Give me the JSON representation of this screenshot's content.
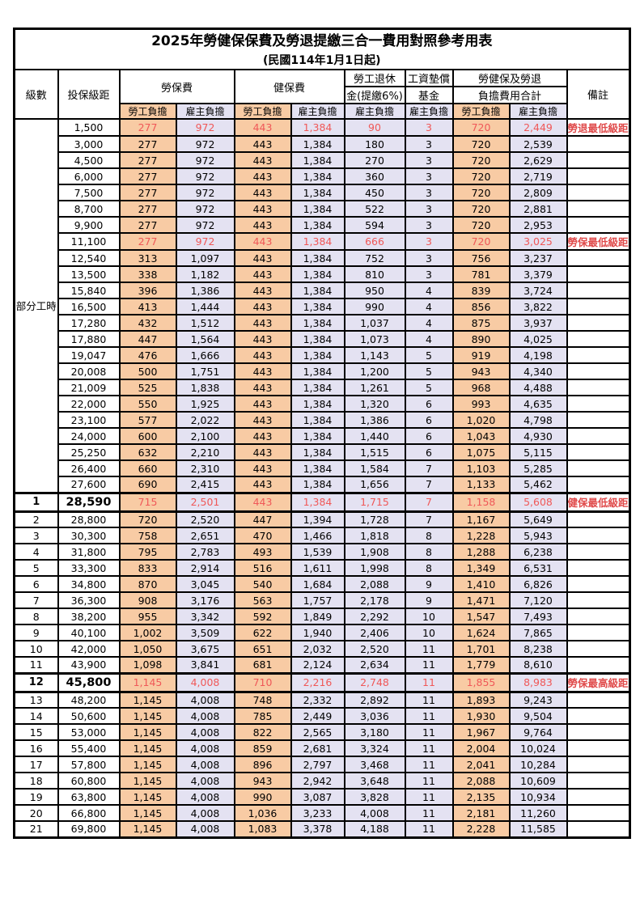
{
  "title": "2025年勞健保保費及勞退提繳三合一費用對照參考用表",
  "subtitle": "(民國114年1月1日起)",
  "colors": {
    "employee_bg": "#f8cba4",
    "employer_bg": "#e4e2f2",
    "milestone_value_text": "#f05858",
    "remark_text": "#e04b4b",
    "border": "#000000"
  },
  "table": {
    "header": {
      "level": "級數",
      "bracket": "投保級距",
      "labor_ins": "勞保費",
      "health_ins": "健保費",
      "pension1": "勞工退休",
      "pension2": "金(提繳6%)",
      "fund1": "工資墊償",
      "fund2": "基金",
      "total1": "勞健保及勞退",
      "total2": "負擔費用合計",
      "remark": "備註",
      "employee": "勞工負擔",
      "employer": "雇主負擔"
    },
    "part_time_label": "部分工時",
    "part_time_rowspan": 23,
    "rows": [
      {
        "level": "",
        "bracket": "1,500",
        "values": [
          "277",
          "972",
          "443",
          "1,384",
          "90",
          "3",
          "720",
          "2,449"
        ],
        "remark": "勞退最低級距",
        "red": true,
        "bold": false
      },
      {
        "level": "",
        "bracket": "3,000",
        "values": [
          "277",
          "972",
          "443",
          "1,384",
          "180",
          "3",
          "720",
          "2,539"
        ],
        "remark": "",
        "red": false,
        "bold": false
      },
      {
        "level": "",
        "bracket": "4,500",
        "values": [
          "277",
          "972",
          "443",
          "1,384",
          "270",
          "3",
          "720",
          "2,629"
        ],
        "remark": "",
        "red": false,
        "bold": false
      },
      {
        "level": "",
        "bracket": "6,000",
        "values": [
          "277",
          "972",
          "443",
          "1,384",
          "360",
          "3",
          "720",
          "2,719"
        ],
        "remark": "",
        "red": false,
        "bold": false
      },
      {
        "level": "",
        "bracket": "7,500",
        "values": [
          "277",
          "972",
          "443",
          "1,384",
          "450",
          "3",
          "720",
          "2,809"
        ],
        "remark": "",
        "red": false,
        "bold": false
      },
      {
        "level": "",
        "bracket": "8,700",
        "values": [
          "277",
          "972",
          "443",
          "1,384",
          "522",
          "3",
          "720",
          "2,881"
        ],
        "remark": "",
        "red": false,
        "bold": false
      },
      {
        "level": "",
        "bracket": "9,900",
        "values": [
          "277",
          "972",
          "443",
          "1,384",
          "594",
          "3",
          "720",
          "2,953"
        ],
        "remark": "",
        "red": false,
        "bold": false
      },
      {
        "level": "",
        "bracket": "11,100",
        "values": [
          "277",
          "972",
          "443",
          "1,384",
          "666",
          "3",
          "720",
          "3,025"
        ],
        "remark": "勞保最低級距",
        "red": true,
        "bold": false
      },
      {
        "level": "",
        "bracket": "12,540",
        "values": [
          "313",
          "1,097",
          "443",
          "1,384",
          "752",
          "3",
          "756",
          "3,237"
        ],
        "remark": "",
        "red": false,
        "bold": false
      },
      {
        "level": "",
        "bracket": "13,500",
        "values": [
          "338",
          "1,182",
          "443",
          "1,384",
          "810",
          "3",
          "781",
          "3,379"
        ],
        "remark": "",
        "red": false,
        "bold": false
      },
      {
        "level": "",
        "bracket": "15,840",
        "values": [
          "396",
          "1,386",
          "443",
          "1,384",
          "950",
          "4",
          "839",
          "3,724"
        ],
        "remark": "",
        "red": false,
        "bold": false
      },
      {
        "level": "",
        "bracket": "16,500",
        "values": [
          "413",
          "1,444",
          "443",
          "1,384",
          "990",
          "4",
          "856",
          "3,822"
        ],
        "remark": "",
        "red": false,
        "bold": false
      },
      {
        "level": "",
        "bracket": "17,280",
        "values": [
          "432",
          "1,512",
          "443",
          "1,384",
          "1,037",
          "4",
          "875",
          "3,937"
        ],
        "remark": "",
        "red": false,
        "bold": false
      },
      {
        "level": "",
        "bracket": "17,880",
        "values": [
          "447",
          "1,564",
          "443",
          "1,384",
          "1,073",
          "4",
          "890",
          "4,025"
        ],
        "remark": "",
        "red": false,
        "bold": false
      },
      {
        "level": "",
        "bracket": "19,047",
        "values": [
          "476",
          "1,666",
          "443",
          "1,384",
          "1,143",
          "5",
          "919",
          "4,198"
        ],
        "remark": "",
        "red": false,
        "bold": false
      },
      {
        "level": "",
        "bracket": "20,008",
        "values": [
          "500",
          "1,751",
          "443",
          "1,384",
          "1,200",
          "5",
          "943",
          "4,340"
        ],
        "remark": "",
        "red": false,
        "bold": false
      },
      {
        "level": "",
        "bracket": "21,009",
        "values": [
          "525",
          "1,838",
          "443",
          "1,384",
          "1,261",
          "5",
          "968",
          "4,488"
        ],
        "remark": "",
        "red": false,
        "bold": false
      },
      {
        "level": "",
        "bracket": "22,000",
        "values": [
          "550",
          "1,925",
          "443",
          "1,384",
          "1,320",
          "6",
          "993",
          "4,635"
        ],
        "remark": "",
        "red": false,
        "bold": false
      },
      {
        "level": "",
        "bracket": "23,100",
        "values": [
          "577",
          "2,022",
          "443",
          "1,384",
          "1,386",
          "6",
          "1,020",
          "4,798"
        ],
        "remark": "",
        "red": false,
        "bold": false
      },
      {
        "level": "",
        "bracket": "24,000",
        "values": [
          "600",
          "2,100",
          "443",
          "1,384",
          "1,440",
          "6",
          "1,043",
          "4,930"
        ],
        "remark": "",
        "red": false,
        "bold": false
      },
      {
        "level": "",
        "bracket": "25,250",
        "values": [
          "632",
          "2,210",
          "443",
          "1,384",
          "1,515",
          "6",
          "1,075",
          "5,115"
        ],
        "remark": "",
        "red": false,
        "bold": false
      },
      {
        "level": "",
        "bracket": "26,400",
        "values": [
          "660",
          "2,310",
          "443",
          "1,384",
          "1,584",
          "7",
          "1,103",
          "5,285"
        ],
        "remark": "",
        "red": false,
        "bold": false
      },
      {
        "level": "",
        "bracket": "27,600",
        "values": [
          "690",
          "2,415",
          "443",
          "1,384",
          "1,656",
          "7",
          "1,133",
          "5,462"
        ],
        "remark": "",
        "red": false,
        "bold": false
      },
      {
        "level": "1",
        "bracket": "28,590",
        "values": [
          "715",
          "2,501",
          "443",
          "1,384",
          "1,715",
          "7",
          "1,158",
          "5,608"
        ],
        "remark": "健保最低級距",
        "red": true,
        "bold": true
      },
      {
        "level": "2",
        "bracket": "28,800",
        "values": [
          "720",
          "2,520",
          "447",
          "1,394",
          "1,728",
          "7",
          "1,167",
          "5,649"
        ],
        "remark": "",
        "red": false,
        "bold": false
      },
      {
        "level": "3",
        "bracket": "30,300",
        "values": [
          "758",
          "2,651",
          "470",
          "1,466",
          "1,818",
          "8",
          "1,228",
          "5,943"
        ],
        "remark": "",
        "red": false,
        "bold": false
      },
      {
        "level": "4",
        "bracket": "31,800",
        "values": [
          "795",
          "2,783",
          "493",
          "1,539",
          "1,908",
          "8",
          "1,288",
          "6,238"
        ],
        "remark": "",
        "red": false,
        "bold": false
      },
      {
        "level": "5",
        "bracket": "33,300",
        "values": [
          "833",
          "2,914",
          "516",
          "1,611",
          "1,998",
          "8",
          "1,349",
          "6,531"
        ],
        "remark": "",
        "red": false,
        "bold": false
      },
      {
        "level": "6",
        "bracket": "34,800",
        "values": [
          "870",
          "3,045",
          "540",
          "1,684",
          "2,088",
          "9",
          "1,410",
          "6,826"
        ],
        "remark": "",
        "red": false,
        "bold": false
      },
      {
        "level": "7",
        "bracket": "36,300",
        "values": [
          "908",
          "3,176",
          "563",
          "1,757",
          "2,178",
          "9",
          "1,471",
          "7,120"
        ],
        "remark": "",
        "red": false,
        "bold": false
      },
      {
        "level": "8",
        "bracket": "38,200",
        "values": [
          "955",
          "3,342",
          "592",
          "1,849",
          "2,292",
          "10",
          "1,547",
          "7,493"
        ],
        "remark": "",
        "red": false,
        "bold": false
      },
      {
        "level": "9",
        "bracket": "40,100",
        "values": [
          "1,002",
          "3,509",
          "622",
          "1,940",
          "2,406",
          "10",
          "1,624",
          "7,865"
        ],
        "remark": "",
        "red": false,
        "bold": false
      },
      {
        "level": "10",
        "bracket": "42,000",
        "values": [
          "1,050",
          "3,675",
          "651",
          "2,032",
          "2,520",
          "11",
          "1,701",
          "8,238"
        ],
        "remark": "",
        "red": false,
        "bold": false
      },
      {
        "level": "11",
        "bracket": "43,900",
        "values": [
          "1,098",
          "3,841",
          "681",
          "2,124",
          "2,634",
          "11",
          "1,779",
          "8,610"
        ],
        "remark": "",
        "red": false,
        "bold": false
      },
      {
        "level": "12",
        "bracket": "45,800",
        "values": [
          "1,145",
          "4,008",
          "710",
          "2,216",
          "2,748",
          "11",
          "1,855",
          "8,983"
        ],
        "remark": "勞保最高級距",
        "red": true,
        "bold": true
      },
      {
        "level": "13",
        "bracket": "48,200",
        "values": [
          "1,145",
          "4,008",
          "748",
          "2,332",
          "2,892",
          "11",
          "1,893",
          "9,243"
        ],
        "remark": "",
        "red": false,
        "bold": false
      },
      {
        "level": "14",
        "bracket": "50,600",
        "values": [
          "1,145",
          "4,008",
          "785",
          "2,449",
          "3,036",
          "11",
          "1,930",
          "9,504"
        ],
        "remark": "",
        "red": false,
        "bold": false
      },
      {
        "level": "15",
        "bracket": "53,000",
        "values": [
          "1,145",
          "4,008",
          "822",
          "2,565",
          "3,180",
          "11",
          "1,967",
          "9,764"
        ],
        "remark": "",
        "red": false,
        "bold": false
      },
      {
        "level": "16",
        "bracket": "55,400",
        "values": [
          "1,145",
          "4,008",
          "859",
          "2,681",
          "3,324",
          "11",
          "2,004",
          "10,024"
        ],
        "remark": "",
        "red": false,
        "bold": false
      },
      {
        "level": "17",
        "bracket": "57,800",
        "values": [
          "1,145",
          "4,008",
          "896",
          "2,797",
          "3,468",
          "11",
          "2,041",
          "10,284"
        ],
        "remark": "",
        "red": false,
        "bold": false
      },
      {
        "level": "18",
        "bracket": "60,800",
        "values": [
          "1,145",
          "4,008",
          "943",
          "2,942",
          "3,648",
          "11",
          "2,088",
          "10,609"
        ],
        "remark": "",
        "red": false,
        "bold": false
      },
      {
        "level": "19",
        "bracket": "63,800",
        "values": [
          "1,145",
          "4,008",
          "990",
          "3,087",
          "3,828",
          "11",
          "2,135",
          "10,934"
        ],
        "remark": "",
        "red": false,
        "bold": false
      },
      {
        "level": "20",
        "bracket": "66,800",
        "values": [
          "1,145",
          "4,008",
          "1,036",
          "3,233",
          "4,008",
          "11",
          "2,181",
          "11,260"
        ],
        "remark": "",
        "red": false,
        "bold": false
      },
      {
        "level": "21",
        "bracket": "69,800",
        "values": [
          "1,145",
          "4,008",
          "1,083",
          "3,378",
          "4,188",
          "11",
          "2,228",
          "11,585"
        ],
        "remark": "",
        "red": false,
        "bold": false
      }
    ]
  }
}
